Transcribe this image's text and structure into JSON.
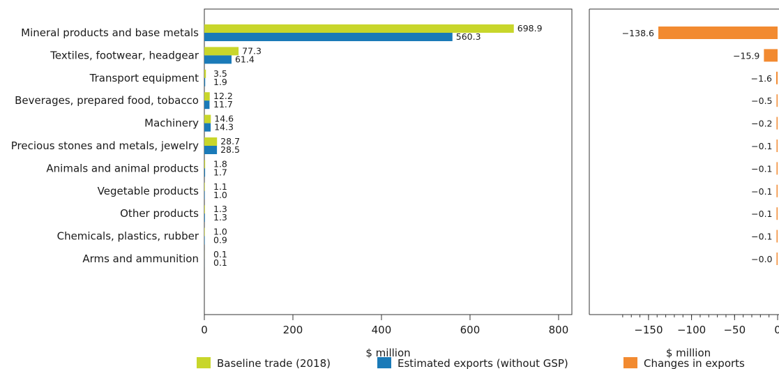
{
  "chart_data": [
    {
      "type": "bar",
      "orientation": "horizontal",
      "categories": [
        "Mineral products and base metals",
        "Textiles, footwear, headgear",
        "Transport equipment",
        "Beverages, prepared food, tobacco",
        "Machinery",
        "Precious stones and metals, jewelry",
        "Animals and animal products",
        "Vegetable products",
        "Other products",
        "Chemicals, plastics, rubber",
        "Arms and ammunition"
      ],
      "series": [
        {
          "name": "Baseline trade (2018)",
          "color": "#c8d62b",
          "values": [
            698.9,
            77.3,
            3.5,
            12.2,
            14.6,
            28.7,
            1.8,
            1.1,
            1.3,
            1.0,
            0.1
          ],
          "labels": [
            "698.9",
            "77.3",
            "3.5",
            "12.2",
            "14.6",
            "28.7",
            "1.8",
            "1.1",
            "1.3",
            "1.0",
            "0.1"
          ]
        },
        {
          "name": "Estimated exports (without GSP)",
          "color": "#1a7ab8",
          "values": [
            560.3,
            61.4,
            1.9,
            11.7,
            14.3,
            28.5,
            1.7,
            1.0,
            1.3,
            0.9,
            0.1
          ],
          "labels": [
            "560.3",
            "61.4",
            "1.9",
            "11.7",
            "14.3",
            "28.5",
            "1.7",
            "1.0",
            "1.3",
            "0.9",
            "0.1"
          ]
        }
      ],
      "xlabel": "$ million",
      "xlim": [
        0,
        830
      ],
      "xticks": [
        0,
        200,
        400,
        600,
        800
      ],
      "xticklabels": [
        "0",
        "200",
        "400",
        "600",
        "800"
      ],
      "grid": false
    },
    {
      "type": "bar",
      "orientation": "horizontal",
      "categories": [
        "Mineral products and base metals",
        "Textiles, footwear, headgear",
        "Transport equipment",
        "Beverages, prepared food, tobacco",
        "Machinery",
        "Precious stones and metals, jewelry",
        "Animals and animal products",
        "Vegetable products",
        "Other products",
        "Chemicals, plastics, rubber",
        "Arms and ammunition"
      ],
      "series": [
        {
          "name": "Changes in exports",
          "color": "#f28a30",
          "values": [
            -138.6,
            -15.9,
            -1.6,
            -0.5,
            -0.2,
            -0.1,
            -0.1,
            -0.1,
            -0.1,
            -0.1,
            -0.0
          ],
          "labels": [
            "−138.6",
            "−15.9",
            "−1.6",
            "−0.5",
            "−0.2",
            "−0.1",
            "−0.1",
            "−0.1",
            "−0.1",
            "−0.1",
            "−0.0"
          ]
        }
      ],
      "xlabel": "$ million",
      "xlim": [
        -190,
        0
      ],
      "xticks": [
        -150,
        -100,
        -50,
        0
      ],
      "xticklabels": [
        "−150",
        "−100",
        "−50",
        "0"
      ],
      "minor_tick_step": 10,
      "grid": false
    }
  ],
  "legend": {
    "placement": "bottom",
    "items": [
      {
        "label": "Baseline trade (2018)",
        "color": "#c8d62b"
      },
      {
        "label": "Estimated exports (without GSP)",
        "color": "#1a7ab8"
      },
      {
        "label": "Changes in exports",
        "color": "#f28a30"
      }
    ]
  }
}
